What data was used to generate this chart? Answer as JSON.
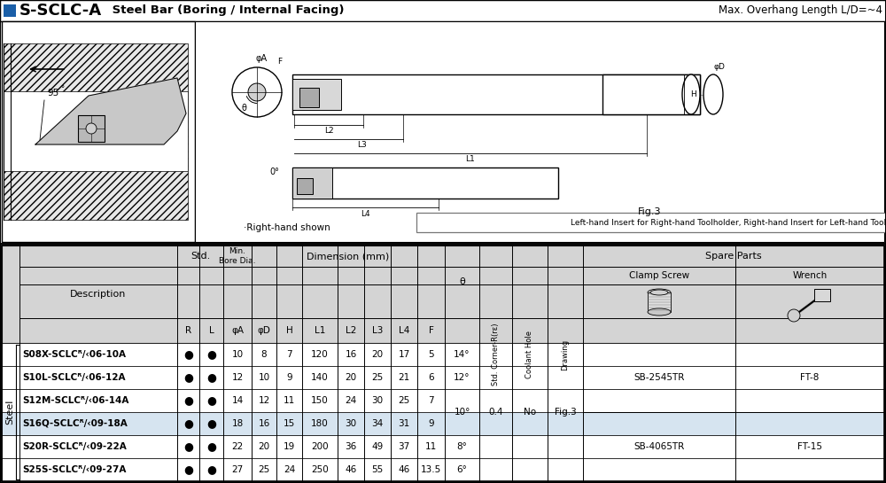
{
  "title_bold": "S-SCLC-A",
  "title_normal": " Steel Bar (Boring / Internal Facing)",
  "title_right": "Max. Overhang Length L/D=~4",
  "note_left": "·Right-hand shown",
  "note_right": "Left-hand Insert for Right-hand Toolholder, Right-hand Insert for Left-hand Toolholder.",
  "fig_label": "Fig.3",
  "row_data": [
    {
      "desc": "S08X-SCLCᴿ/‹06-10A",
      "phiA": "10",
      "phiD": "8",
      "H": "7",
      "L1": "120",
      "L2": "16",
      "L3": "20",
      "L4": "17",
      "F": "5",
      "theta": "14°"
    },
    {
      "desc": "S10L-SCLCᴿ/‹06-12A",
      "phiA": "12",
      "phiD": "10",
      "H": "9",
      "L1": "140",
      "L2": "20",
      "L3": "25",
      "L4": "21",
      "F": "6",
      "theta": "12°"
    },
    {
      "desc": "S12M-SCLCᴿ/‹06-14A",
      "phiA": "14",
      "phiD": "12",
      "H": "11",
      "L1": "150",
      "L2": "24",
      "L3": "30",
      "L4": "25",
      "F": "7",
      "theta": ""
    },
    {
      "desc": "S16Q-SCLCᴿ/‹09-18A",
      "phiA": "18",
      "phiD": "16",
      "H": "15",
      "L1": "180",
      "L2": "30",
      "L3": "34",
      "L4": "31",
      "F": "9",
      "theta": ""
    },
    {
      "desc": "S20R-SCLCᴿ/‹09-22A",
      "phiA": "22",
      "phiD": "20",
      "H": "19",
      "L1": "200",
      "L2": "36",
      "L3": "49",
      "L4": "37",
      "F": "11",
      "theta": "8°"
    },
    {
      "desc": "S25S-SCLCᴿ/‹09-27A",
      "phiA": "27",
      "phiD": "25",
      "H": "24",
      "L1": "250",
      "L2": "46",
      "L3": "55",
      "L4": "46",
      "F": "13.5",
      "theta": "6°"
    }
  ],
  "merged_theta": "10°",
  "merged_corner": "0.4",
  "merged_coolant": "No",
  "merged_drawing": "Fig.3",
  "clamp_values": [
    "SB-2545TR",
    "SB-4065TR"
  ],
  "wrench_values": [
    "FT-8",
    "FT-15"
  ],
  "material_label": "Steel",
  "header_gray": "#d4d4d4",
  "row_blue": "#d6e4f0"
}
